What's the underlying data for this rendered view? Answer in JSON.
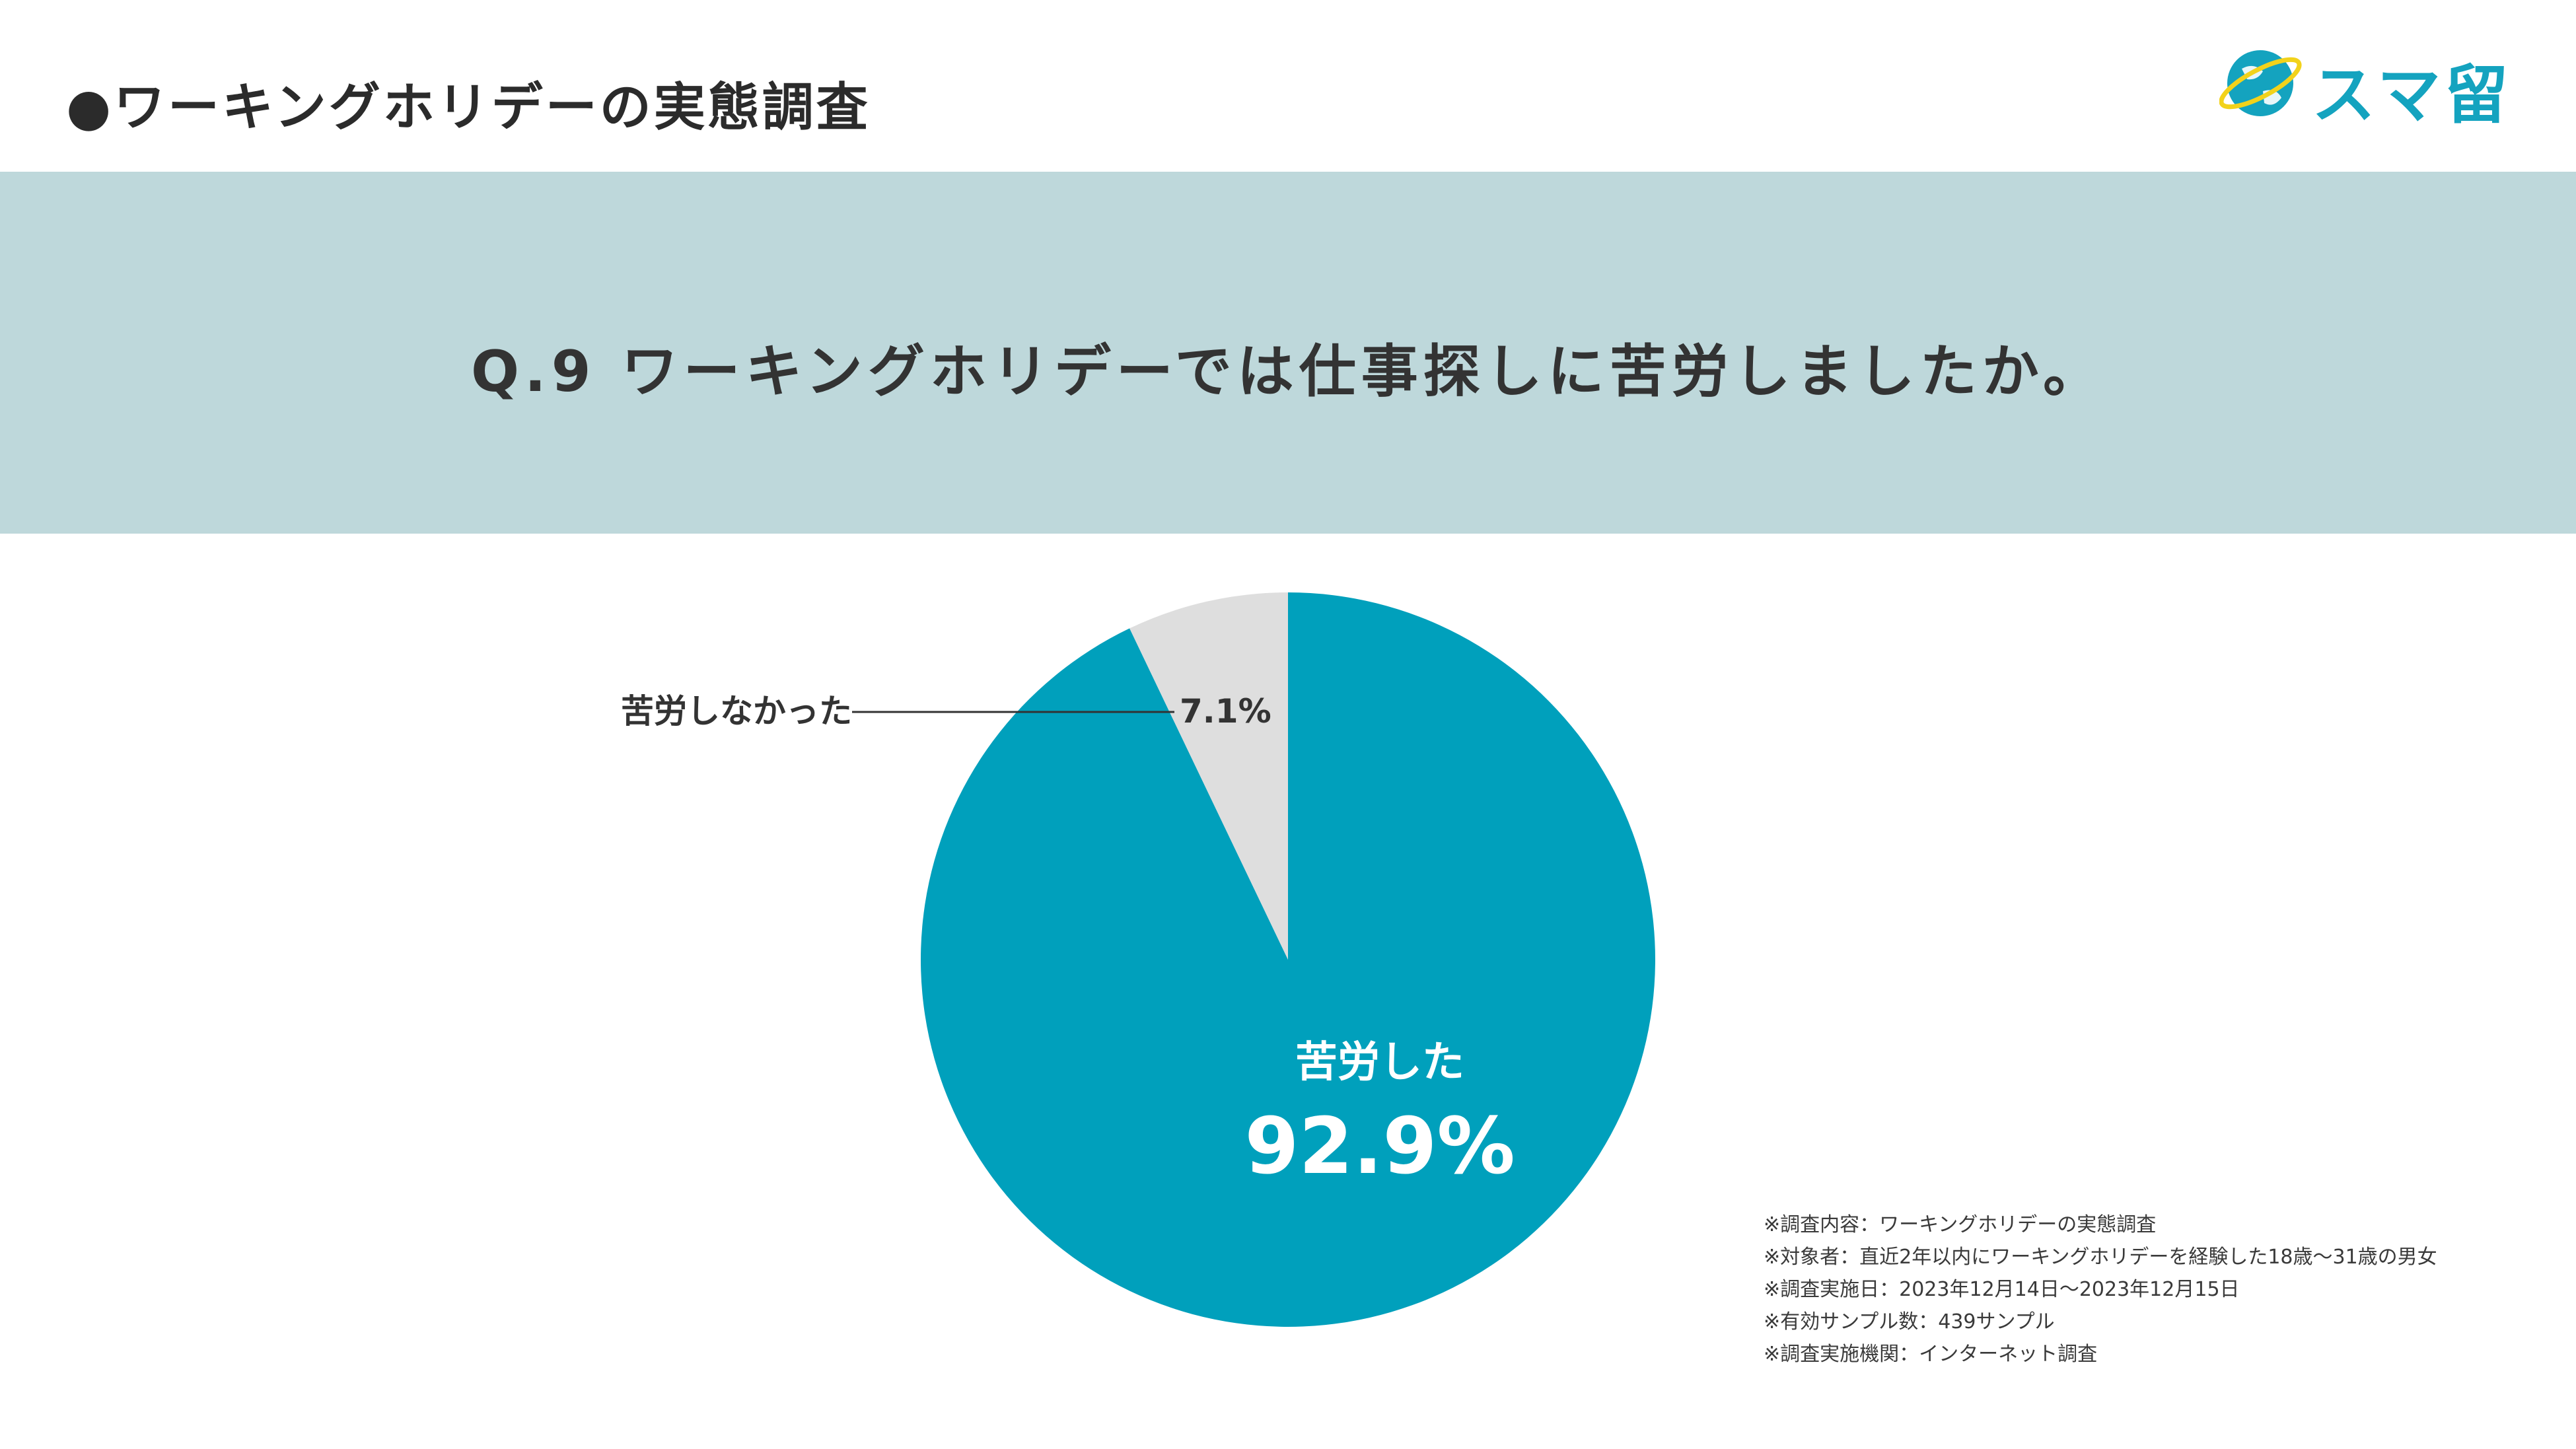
{
  "header": {
    "title": "●ワーキングホリデーの実態調査",
    "logo_text": "スマ留",
    "logo_icon": "globe-icon"
  },
  "question": {
    "text": "Q.9 ワーキングホリデーでは仕事探しに苦労しましたか。"
  },
  "colors": {
    "band": "#bed8db",
    "accent": "#00a0bc",
    "secondary": "#dedede",
    "text": "#333333"
  },
  "chart_data": {
    "type": "pie",
    "slices": [
      {
        "label": "苦労した",
        "value": 92.9,
        "display": "92.9%",
        "color": "#00a0bc"
      },
      {
        "label": "苦労しなかった",
        "value": 7.1,
        "display": "7.1%",
        "color": "#dedede"
      }
    ]
  },
  "notes": [
    "※調査内容：ワーキングホリデーの実態調査",
    "※対象者：直近2年以内にワーキングホリデーを経験した18歳〜31歳の男女",
    "※調査実施日：2023年12月14日〜2023年12月15日",
    "※有効サンプル数：439サンプル",
    "※調査実施機関：インターネット調査"
  ]
}
